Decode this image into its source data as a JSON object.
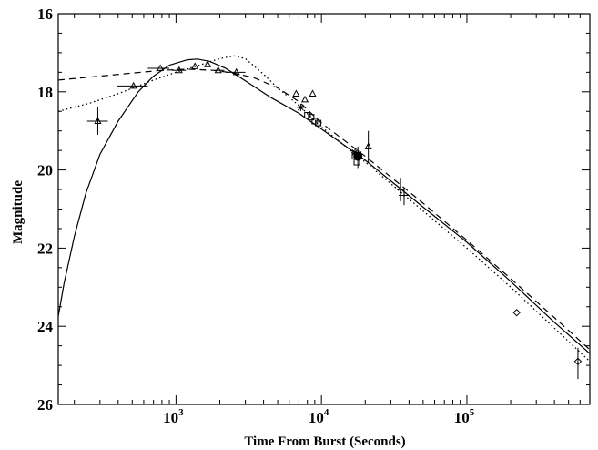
{
  "chart_data": {
    "type": "line",
    "xlabel": "Time From Burst (Seconds)",
    "ylabel": "Magnitude",
    "x_scale": "log",
    "xlim": [
      155,
      700000
    ],
    "ylim": [
      26,
      16
    ],
    "y_inverted": true,
    "grid": false,
    "x_ticks": [
      {
        "value": 1000,
        "base": "10",
        "exp": "3"
      },
      {
        "value": 10000,
        "base": "10",
        "exp": "4"
      },
      {
        "value": 100000,
        "base": "10",
        "exp": "5"
      }
    ],
    "y_ticks": [
      16,
      18,
      20,
      22,
      24,
      26
    ],
    "series": [
      {
        "marker": "triangle",
        "points": [
          {
            "x": 290,
            "y": 18.75,
            "xerr": [
              245,
              340
            ],
            "yerr": [
              18.4,
              19.1
            ]
          },
          {
            "x": 510,
            "y": 17.85,
            "xerr": [
              390,
              640
            ]
          },
          {
            "x": 780,
            "y": 17.4,
            "xerr": [
              640,
              900
            ]
          },
          {
            "x": 1050,
            "y": 17.45,
            "xerr": [
              940,
              1170
            ]
          },
          {
            "x": 1350,
            "y": 17.35
          },
          {
            "x": 1650,
            "y": 17.3
          },
          {
            "x": 1950,
            "y": 17.45,
            "xerr": [
              1850,
              2150
            ]
          },
          {
            "x": 2600,
            "y": 17.5,
            "xerr": [
              2200,
              3000
            ]
          },
          {
            "x": 6700,
            "y": 18.05
          },
          {
            "x": 7700,
            "y": 18.2
          },
          {
            "x": 8700,
            "y": 18.05
          },
          {
            "x": 21000,
            "y": 19.4,
            "yerr": [
              19.0,
              19.8
            ]
          }
        ]
      },
      {
        "marker": "square",
        "points": [
          {
            "x": 8000,
            "y": 18.6
          },
          {
            "x": 8500,
            "y": 18.65
          },
          {
            "x": 9000,
            "y": 18.75
          },
          {
            "x": 9500,
            "y": 18.8
          },
          {
            "x": 17000,
            "y": 19.65
          },
          {
            "x": 17500,
            "y": 19.8
          }
        ]
      },
      {
        "marker": "asterisk",
        "points": [
          {
            "x": 7200,
            "y": 18.4
          },
          {
            "x": 17000,
            "y": 19.55
          },
          {
            "x": 18000,
            "y": 19.6
          }
        ]
      },
      {
        "marker": "circle",
        "points": [
          {
            "x": 17800,
            "y": 19.65,
            "yerr": [
              19.4,
              19.95
            ]
          }
        ]
      },
      {
        "marker": "plus",
        "points": [
          {
            "x": 35000,
            "y": 20.5,
            "yerr": [
              20.2,
              20.8
            ]
          },
          {
            "x": 37000,
            "y": 20.65,
            "xerr": [
              34000,
              40000
            ],
            "yerr": [
              20.45,
              20.9
            ]
          }
        ]
      },
      {
        "marker": "diamond",
        "points": [
          {
            "x": 220000,
            "y": 23.65
          },
          {
            "x": 580000,
            "y": 24.9,
            "yerr": [
              24.55,
              25.35
            ]
          }
        ]
      }
    ],
    "models": [
      {
        "style": "solid",
        "points": [
          [
            155,
            23.75
          ],
          [
            170,
            22.9
          ],
          [
            200,
            21.7
          ],
          [
            240,
            20.6
          ],
          [
            300,
            19.6
          ],
          [
            400,
            18.75
          ],
          [
            550,
            18.0
          ],
          [
            700,
            17.6
          ],
          [
            900,
            17.32
          ],
          [
            1200,
            17.18
          ],
          [
            1400,
            17.16
          ],
          [
            1700,
            17.22
          ],
          [
            2200,
            17.4
          ],
          [
            3000,
            17.72
          ],
          [
            4500,
            18.15
          ],
          [
            7000,
            18.55
          ],
          [
            10000,
            18.95
          ],
          [
            20000,
            19.75
          ],
          [
            50000,
            20.95
          ],
          [
            100000,
            21.85
          ],
          [
            200000,
            22.85
          ],
          [
            400000,
            23.9
          ],
          [
            700000,
            24.7
          ]
        ]
      },
      {
        "style": "dashed",
        "points": [
          [
            155,
            17.7
          ],
          [
            300,
            17.6
          ],
          [
            500,
            17.52
          ],
          [
            800,
            17.45
          ],
          [
            1200,
            17.42
          ],
          [
            1800,
            17.45
          ],
          [
            2500,
            17.52
          ],
          [
            3500,
            17.65
          ],
          [
            5000,
            17.9
          ],
          [
            7000,
            18.25
          ],
          [
            10000,
            18.8
          ],
          [
            20000,
            19.65
          ],
          [
            50000,
            20.85
          ],
          [
            100000,
            21.8
          ],
          [
            200000,
            22.78
          ],
          [
            400000,
            23.78
          ],
          [
            700000,
            24.6
          ]
        ]
      },
      {
        "style": "dotted",
        "points": [
          [
            155,
            18.5
          ],
          [
            250,
            18.3
          ],
          [
            400,
            18.05
          ],
          [
            700,
            17.7
          ],
          [
            1000,
            17.5
          ],
          [
            1500,
            17.3
          ],
          [
            2000,
            17.15
          ],
          [
            2500,
            17.08
          ],
          [
            3000,
            17.15
          ],
          [
            4000,
            17.55
          ],
          [
            5000,
            17.9
          ],
          [
            7000,
            18.35
          ],
          [
            10000,
            18.9
          ],
          [
            20000,
            19.8
          ],
          [
            50000,
            21.05
          ],
          [
            100000,
            22.0
          ],
          [
            200000,
            23.0
          ],
          [
            400000,
            24.05
          ],
          [
            700000,
            24.9
          ]
        ]
      }
    ]
  }
}
